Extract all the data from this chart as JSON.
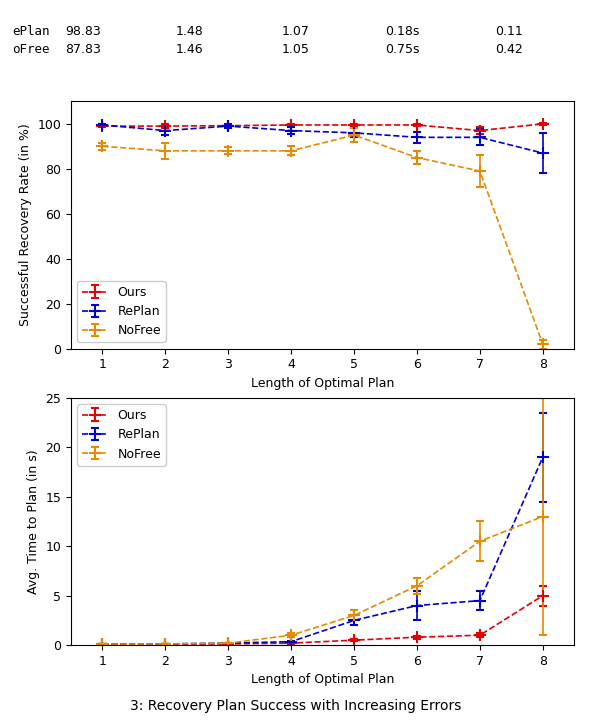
{
  "x": [
    1,
    2,
    3,
    4,
    5,
    6,
    7,
    8
  ],
  "top": {
    "ours_y": [
      99.0,
      99.0,
      99.2,
      99.5,
      99.5,
      99.5,
      97.0,
      100.0
    ],
    "ours_err": [
      0.5,
      0.8,
      0.5,
      0.4,
      0.5,
      0.5,
      1.5,
      0.5
    ],
    "replan_y": [
      99.5,
      97.0,
      99.0,
      97.0,
      96.0,
      94.0,
      94.0,
      87.0
    ],
    "replan_err": [
      0.5,
      2.0,
      0.8,
      1.5,
      2.0,
      2.5,
      3.5,
      9.0
    ],
    "nofree_y": [
      90.0,
      88.0,
      88.0,
      88.0,
      95.0,
      85.0,
      79.0,
      2.0
    ],
    "nofree_err": [
      1.5,
      3.5,
      1.5,
      2.0,
      3.0,
      3.0,
      7.0,
      2.0
    ],
    "ylabel": "Successful Recovery Rate (in %)",
    "xlabel": "Length of Optimal Plan",
    "ylim": [
      0,
      110
    ],
    "yticks": [
      0,
      20,
      40,
      60,
      80,
      100
    ]
  },
  "bottom": {
    "ours_y": [
      0.08,
      0.1,
      0.12,
      0.2,
      0.5,
      0.8,
      1.0,
      5.0
    ],
    "ours_err": [
      0.02,
      0.02,
      0.03,
      0.05,
      0.1,
      0.15,
      0.2,
      1.0
    ],
    "replan_y": [
      0.1,
      0.12,
      0.2,
      0.35,
      2.5,
      4.0,
      4.5,
      19.0
    ],
    "replan_err": [
      0.02,
      0.03,
      0.05,
      0.08,
      0.5,
      1.5,
      1.0,
      4.5
    ],
    "nofree_y": [
      0.1,
      0.12,
      0.2,
      1.0,
      3.0,
      6.0,
      10.5,
      13.0
    ],
    "nofree_err": [
      0.02,
      0.03,
      0.05,
      0.2,
      0.5,
      0.8,
      2.0,
      12.0
    ],
    "ylabel": "Avg. Time to Plan (in s)",
    "xlabel": "Length of Optimal Plan",
    "ylim": [
      0,
      25
    ],
    "yticks": [
      0,
      5,
      10,
      15,
      20,
      25
    ]
  },
  "colors": {
    "ours": "#e60000",
    "replan": "#0000cc",
    "nofree": "#e68a00"
  },
  "table": {
    "rows": [
      "ePlan",
      "oFree"
    ],
    "cols": [
      "",
      "98.83 / 87.83",
      "1.48 / 1.46",
      "1.07 / 1.05",
      "0.18s / 0.75s",
      "0.11 / 0.42"
    ],
    "row1": [
      "ePlan",
      "98.83",
      "1.48",
      "1.07",
      "0.18s",
      "0.11"
    ],
    "row2": [
      "oFree",
      "87.83",
      "1.46",
      "1.05",
      "0.75s",
      "0.42"
    ]
  },
  "caption": "3: Recovery Plan Success with Increasing Errors",
  "figsize": [
    5.92,
    7.24
  ],
  "dpi": 100
}
